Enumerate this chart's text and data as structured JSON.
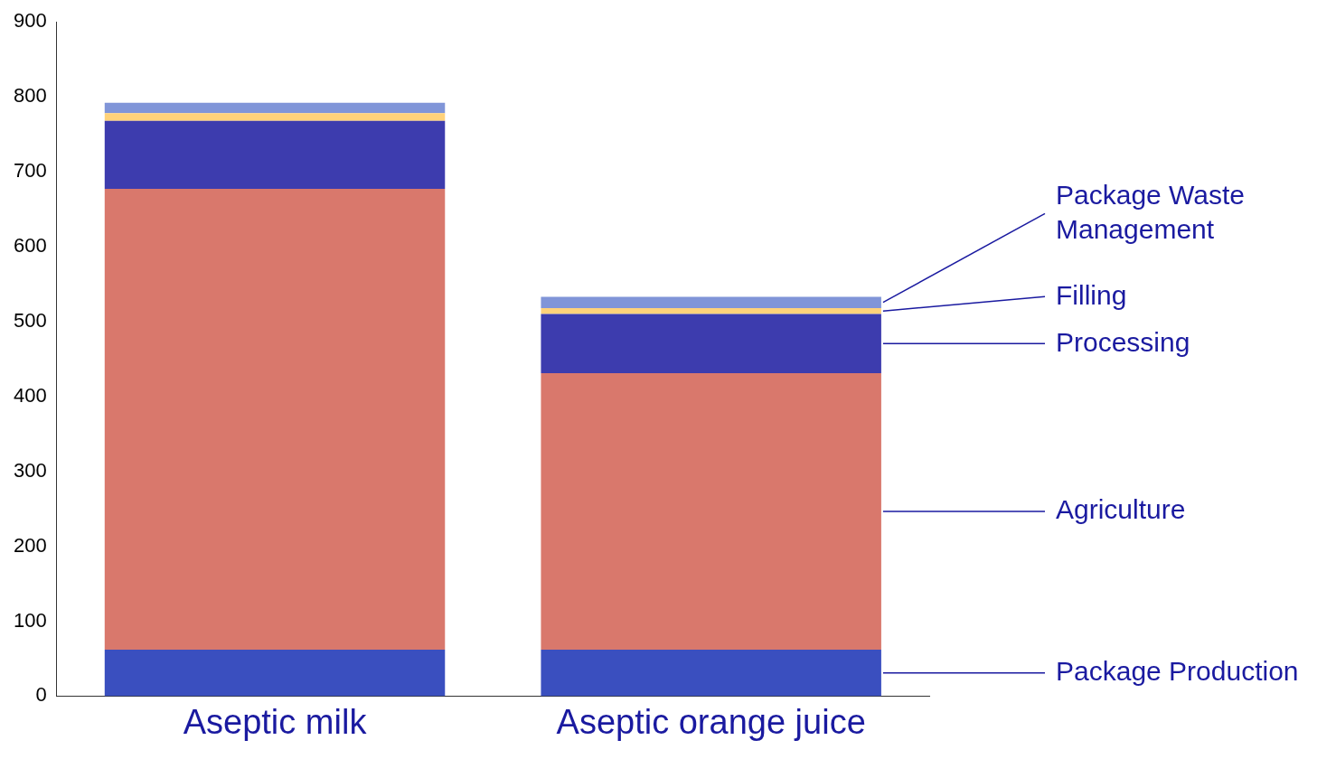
{
  "chart_data": {
    "type": "bar",
    "stacked": true,
    "categories": [
      "Aseptic milk",
      "Aseptic orange juice"
    ],
    "series": [
      {
        "name": "Package Production",
        "color": "#3a4fbf",
        "values": [
          62,
          62
        ]
      },
      {
        "name": "Agriculture",
        "color": "#d9786c",
        "values": [
          615,
          369
        ]
      },
      {
        "name": "Processing",
        "color": "#3d3cae",
        "values": [
          91,
          79
        ]
      },
      {
        "name": "Filling",
        "color": "#ffd27a",
        "values": [
          10,
          8
        ]
      },
      {
        "name": "Package Waste Management",
        "color": "#8095d8",
        "values": [
          14,
          15
        ]
      }
    ],
    "ylim": [
      0,
      900
    ],
    "yticks": [
      0,
      100,
      200,
      300,
      400,
      500,
      600,
      700,
      800,
      900
    ],
    "grid": false,
    "legend": "right"
  }
}
